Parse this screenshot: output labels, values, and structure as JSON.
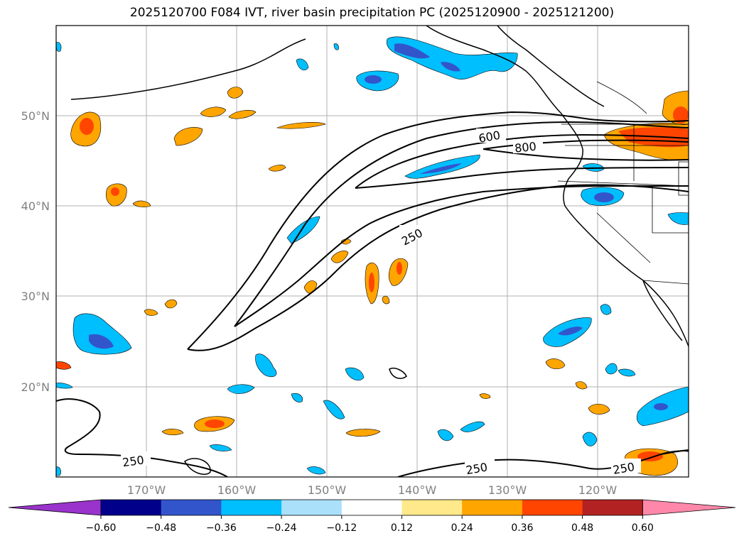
{
  "title": "2025120700 F084 IVT, river basin precipitation PC (2025120900 - 2025121200)",
  "map": {
    "lon_labels": [
      "170°W",
      "160°W",
      "150°W",
      "140°W",
      "130°W",
      "120°W"
    ],
    "lat_labels": [
      "50°N",
      "40°N",
      "30°N",
      "20°N"
    ],
    "contour_labels": [
      "600",
      "800",
      "250",
      "250",
      "250",
      "250"
    ],
    "grid": true
  },
  "colorbar": {
    "colors": [
      "#9933cc",
      "#00008b",
      "#3355cc",
      "#00bfff",
      "#aae0fa",
      "#ffffff",
      "#ffe98a",
      "#ffa500",
      "#ff4500",
      "#b22222",
      "#ff88aa"
    ],
    "ticks": [
      "−0.60",
      "−0.48",
      "−0.36",
      "−0.24",
      "−0.12",
      "0.12",
      "0.24",
      "0.36",
      "0.48",
      "0.60"
    ]
  }
}
